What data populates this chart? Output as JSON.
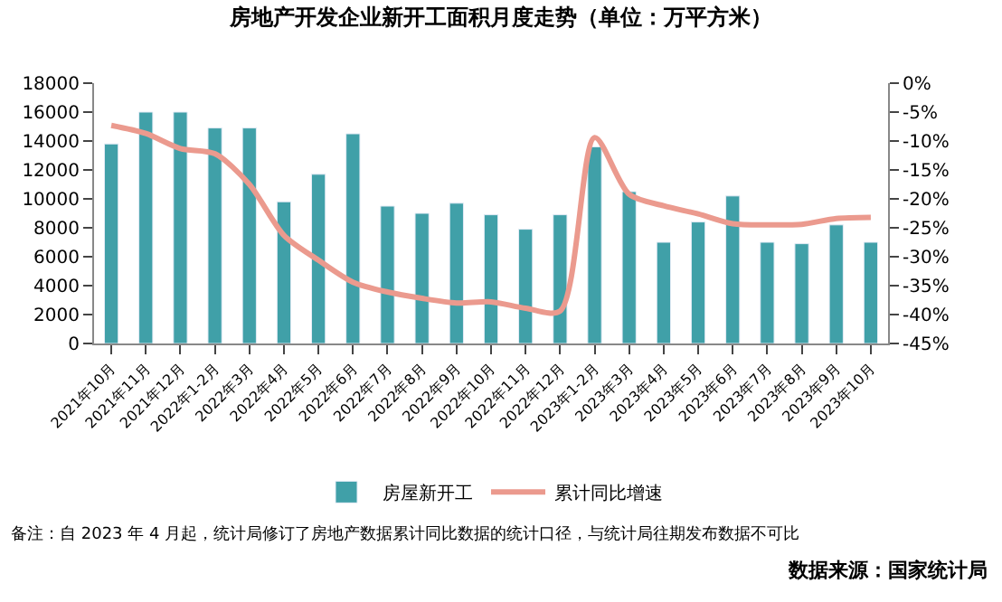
{
  "chart_data": {
    "type": "bar",
    "title": "房地产开发企业新开工面积月度走势（单位：万平方米）",
    "categories": [
      "2021年10月",
      "2021年11月",
      "2021年12月",
      "2022年1-2月",
      "2022年3月",
      "2022年4月",
      "2022年5月",
      "2022年6月",
      "2022年7月",
      "2022年8月",
      "2022年9月",
      "2022年10月",
      "2022年11月",
      "2022年12月",
      "2023年1-2月",
      "2023年3月",
      "2023年4月",
      "2023年5月",
      "2023年6月",
      "2023年7月",
      "2023年8月",
      "2023年9月",
      "2023年10月"
    ],
    "series": [
      {
        "name": "房屋新开工",
        "color": "#40a0a8",
        "values": [
          13800,
          16000,
          16000,
          14900,
          14900,
          9800,
          11700,
          14500,
          9500,
          9000,
          9700,
          8900,
          7900,
          8900,
          13600,
          10500,
          7000,
          8400,
          10200,
          7000,
          6900,
          8200,
          7000
        ]
      },
      {
        "name": "累计同比增速",
        "type": "line",
        "axis": "y2",
        "color": "#eb9a8e",
        "values": [
          -7.3,
          -8.7,
          -11.3,
          -12.2,
          -17.5,
          -26.3,
          -30.6,
          -34.4,
          -36.1,
          -37.2,
          -38.0,
          -37.8,
          -38.9,
          -39.4,
          -9.4,
          -19.2,
          -21.2,
          -22.6,
          -24.3,
          -24.5,
          -24.4,
          -23.4,
          -23.2
        ]
      }
    ],
    "ylim": [
      0,
      18000
    ],
    "yticks": [
      0,
      2000,
      4000,
      6000,
      8000,
      10000,
      12000,
      14000,
      16000,
      18000
    ],
    "y2lim": [
      -45,
      0
    ],
    "y2ticks": [
      {
        "value": 0,
        "label": "0%"
      },
      {
        "value": -5,
        "label": "-5%"
      },
      {
        "value": -10,
        "label": "-10%"
      },
      {
        "value": -15,
        "label": "-15%"
      },
      {
        "value": -20,
        "label": "-20%"
      },
      {
        "value": -25,
        "label": "-25%"
      },
      {
        "value": -30,
        "label": "-30%"
      },
      {
        "value": -35,
        "label": "-35%"
      },
      {
        "value": -40,
        "label": "-40%"
      },
      {
        "value": -45,
        "label": "-45%"
      }
    ],
    "legend": "bottom",
    "annotations": [
      "备注：自 2023 年 4 月起，统计局修订了房地产数据累计同比数据的统计口径，与统计局往期发布数据不可比",
      "数据来源：国家统计局"
    ]
  }
}
